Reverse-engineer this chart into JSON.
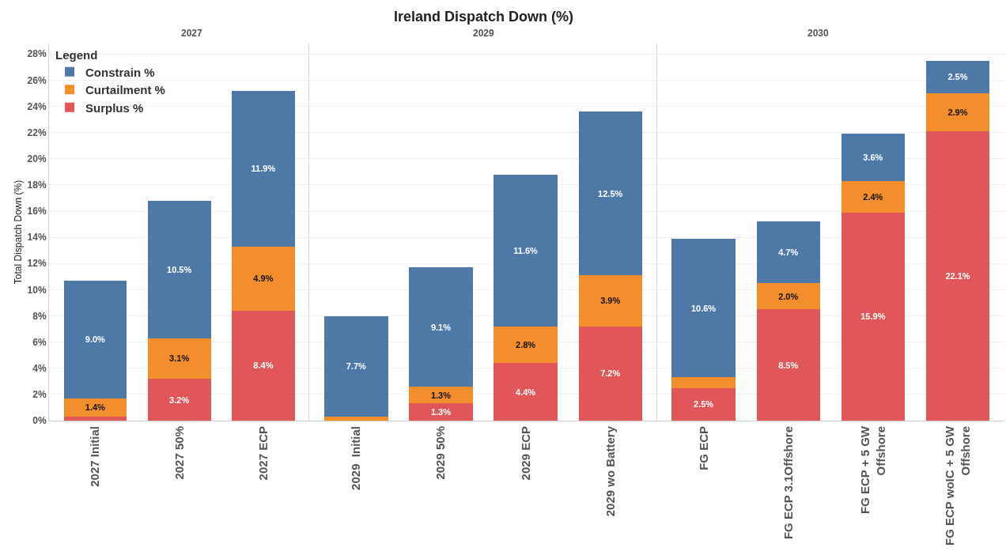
{
  "chart_data": [
    {
      "type": "bar",
      "subtitle": "2027",
      "ylabel": "Total Dispatch Down (%)",
      "stacked": true,
      "legend": "top left",
      "legend_title": "Legend",
      "grid": "y",
      "categories": [
        "2027 Initial",
        "2027 50%",
        "2027 ECP"
      ],
      "ylim": [
        0,
        28.8
      ],
      "yticks": [
        {
          "value": 0,
          "label": "0%"
        },
        {
          "value": 2,
          "label": "2%"
        },
        {
          "value": 4,
          "label": "4%"
        },
        {
          "value": 6,
          "label": "6%"
        },
        {
          "value": 8,
          "label": "8%"
        },
        {
          "value": 10,
          "label": "10%"
        },
        {
          "value": 12,
          "label": "12%"
        },
        {
          "value": 14,
          "label": "14%"
        },
        {
          "value": 16,
          "label": "16%"
        },
        {
          "value": 18,
          "label": "18%"
        },
        {
          "value": 20,
          "label": "20%"
        },
        {
          "value": 22,
          "label": "22%"
        },
        {
          "value": 24,
          "label": "24%"
        },
        {
          "value": 26,
          "label": "26%"
        },
        {
          "value": 28,
          "label": "28%"
        }
      ],
      "series": [
        {
          "name": "Surplus %",
          "color": "#e15759",
          "values": [
            0.3,
            3.2,
            8.4
          ],
          "value_labels": [
            null,
            "3.2%",
            "8.4%"
          ]
        },
        {
          "name": "Curtailment %",
          "color": "#f28e2b",
          "values": [
            1.4,
            3.1,
            4.9
          ],
          "value_labels": [
            "1.4%",
            "3.1%",
            "4.9%"
          ]
        },
        {
          "name": "Constrain %",
          "color": "#4e79a7",
          "values": [
            9.0,
            10.5,
            11.9
          ],
          "value_labels": [
            "9.0%",
            "10.5%",
            "11.9%"
          ]
        }
      ]
    },
    {
      "type": "bar",
      "title": "Ireland Dispatch Down (%)",
      "subtitle": "2029",
      "stacked": true,
      "grid": "y",
      "tick_labels": "x",
      "categories": [
        "2029  Initial",
        "2029 50%",
        "2029 ECP",
        "2029 wo Battery"
      ],
      "ylim": [
        0,
        28.8
      ],
      "series": [
        {
          "color": "#e15759",
          "values": [
            0,
            1.3,
            4.4,
            7.2
          ],
          "value_labels": [
            null,
            "1.3%",
            "4.4%",
            "7.2%"
          ]
        },
        {
          "color": "#f28e2b",
          "values": [
            0.3,
            1.3,
            2.8,
            3.9
          ],
          "value_labels": [
            null,
            "1.3%",
            "2.8%",
            "3.9%"
          ]
        },
        {
          "color": "#4e79a7",
          "values": [
            7.7,
            9.1,
            11.6,
            12.5
          ],
          "value_labels": [
            "7.7%",
            "9.1%",
            "11.6%",
            "12.5%"
          ]
        }
      ]
    },
    {
      "type": "bar",
      "subtitle": "2030",
      "stacked": true,
      "grid": "y",
      "tick_labels": "x",
      "categories": [
        "FG ECP",
        "FG ECP 3.1Offshore",
        "FG ECP + 5 GW Offshore",
        "FG ECP woIC + 5 GW Offshore"
      ],
      "ylim": [
        0,
        28.8
      ],
      "series": [
        {
          "color": "#e15759",
          "values": [
            2.5,
            8.5,
            15.9,
            22.1
          ],
          "value_labels": [
            "2.5%",
            "8.5%",
            "15.9%",
            "22.1%"
          ]
        },
        {
          "color": "#f28e2b",
          "values": [
            0.8,
            2.0,
            2.4,
            2.9
          ],
          "value_labels": [
            null,
            "2.0%",
            "2.4%",
            "2.9%"
          ]
        },
        {
          "color": "#4e79a7",
          "values": [
            10.6,
            4.7,
            3.6,
            2.5
          ],
          "value_labels": [
            "10.6%",
            "4.7%",
            "3.6%",
            "2.5%"
          ]
        }
      ]
    }
  ]
}
